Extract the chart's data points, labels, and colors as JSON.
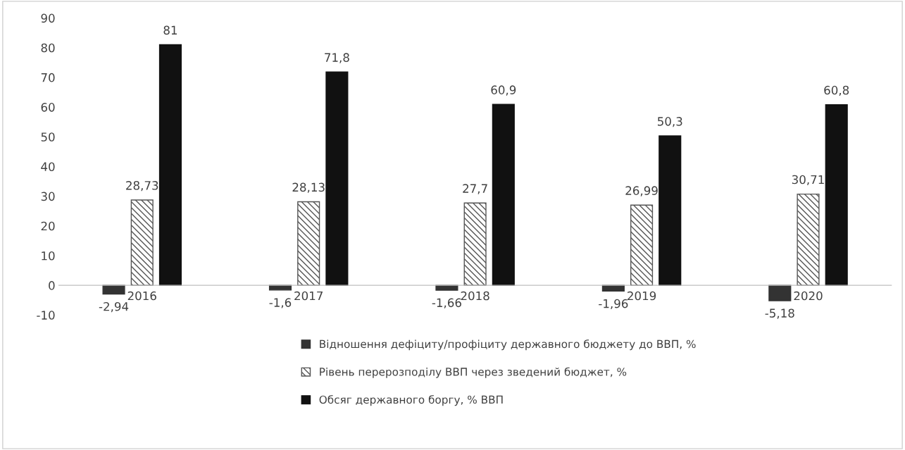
{
  "chart_data": {
    "type": "bar",
    "categories": [
      "2016",
      "2017",
      "2018",
      "2019",
      "2020"
    ],
    "series": [
      {
        "name": "Відношення дефіциту/профіциту державного бюджету до ВВП, %",
        "color": "#333333",
        "values": [
          -2.94,
          -1.6,
          -1.66,
          -1.96,
          -5.18
        ],
        "value_labels": [
          "-2,94",
          "-1,6",
          "-1,66",
          "-1,96",
          "-5,18"
        ]
      },
      {
        "name": "Рівень перерозподілу ВВП через зведений бюджет, %",
        "color": "#555555",
        "values": [
          28.73,
          28.13,
          27.7,
          26.99,
          30.71
        ],
        "value_labels": [
          "28,73",
          "28,13",
          "27,7",
          "26,99",
          "30,71"
        ]
      },
      {
        "name": "Обсяг державного боргу, % ВВП",
        "color": "#111111",
        "values": [
          81,
          71.8,
          60.9,
          50.3,
          60.8
        ],
        "value_labels": [
          "81",
          "71,8",
          "60,9",
          "50,3",
          "60,8"
        ]
      }
    ],
    "ylim": [
      -10,
      90
    ],
    "yticks": [
      -10,
      0,
      10,
      20,
      30,
      40,
      50,
      60,
      70,
      80,
      90
    ],
    "grid": false,
    "legend": "bottom"
  }
}
